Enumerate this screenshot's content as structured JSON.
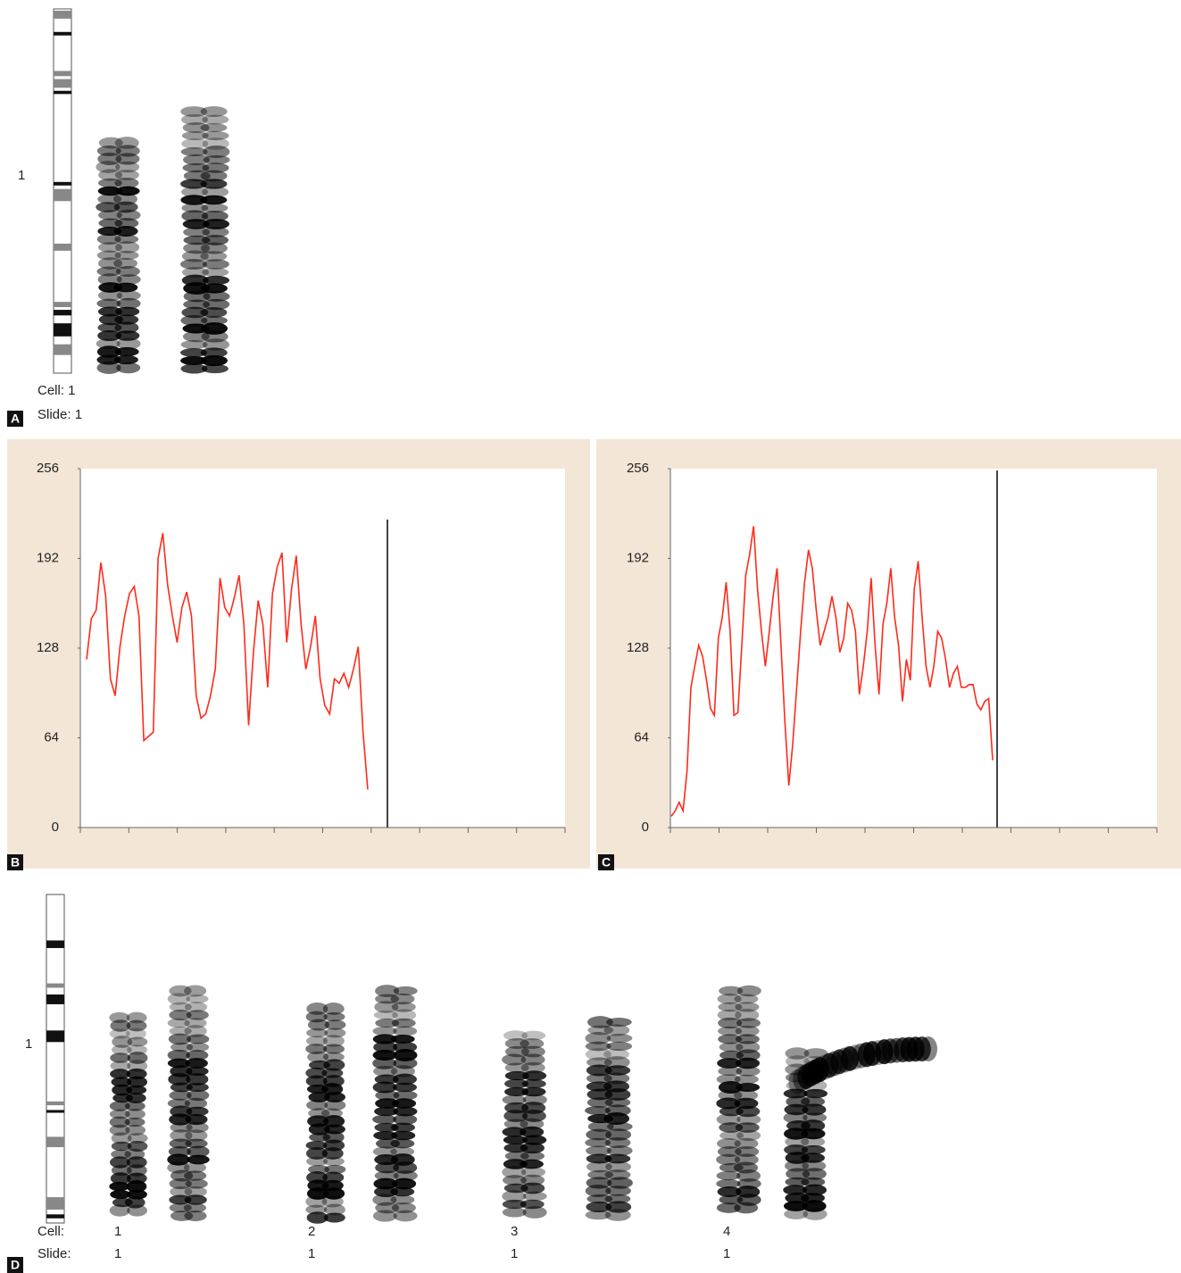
{
  "panel_a": {
    "label": "A",
    "chromosome": "1",
    "cell_label": "Cell: 1",
    "slide_label": "Slide: 1"
  },
  "chart_data": [
    {
      "type": "line",
      "panel_label": "B",
      "color": "#ff2a1a",
      "ylim": [
        0,
        256
      ],
      "yticks": [
        0,
        64,
        128,
        192,
        256
      ],
      "values": [
        120,
        149,
        155,
        189,
        165,
        106,
        94,
        129,
        151,
        167,
        172,
        151,
        62,
        65,
        68,
        192,
        210,
        173,
        151,
        132,
        157,
        168,
        151,
        94,
        78,
        81,
        94,
        113,
        178,
        157,
        151,
        164,
        180,
        145,
        73,
        125,
        162,
        145,
        100,
        167,
        186,
        196,
        132,
        170,
        194,
        145,
        113,
        129,
        151,
        106,
        87,
        81,
        106,
        103,
        110,
        100,
        113,
        129,
        68,
        27
      ]
    },
    {
      "type": "line",
      "panel_label": "C",
      "color": "#ff2a1a",
      "ylim": [
        0,
        256
      ],
      "yticks": [
        0,
        64,
        128,
        192,
        256
      ],
      "values": [
        8,
        12,
        18,
        12,
        40,
        100,
        115,
        130,
        122,
        105,
        85,
        80,
        135,
        150,
        175,
        140,
        80,
        82,
        130,
        180,
        195,
        215,
        170,
        140,
        115,
        140,
        165,
        185,
        130,
        75,
        30,
        60,
        100,
        140,
        175,
        198,
        185,
        155,
        130,
        140,
        150,
        165,
        150,
        125,
        135,
        160,
        155,
        140,
        95,
        115,
        140,
        178,
        130,
        95,
        145,
        160,
        185,
        150,
        130,
        90,
        120,
        105,
        170,
        190,
        150,
        115,
        100,
        115,
        140,
        135,
        120,
        100,
        110,
        115,
        100,
        100,
        102,
        102,
        88,
        84,
        90,
        92,
        48
      ]
    }
  ],
  "panel_d": {
    "label": "D",
    "chromosome": "1",
    "cell_heading": "Cell:",
    "slide_heading": "Slide:",
    "cells": [
      {
        "cell": "1",
        "slide": "1"
      },
      {
        "cell": "2",
        "slide": "1"
      },
      {
        "cell": "3",
        "slide": "1"
      },
      {
        "cell": "4",
        "slide": "1"
      }
    ]
  }
}
